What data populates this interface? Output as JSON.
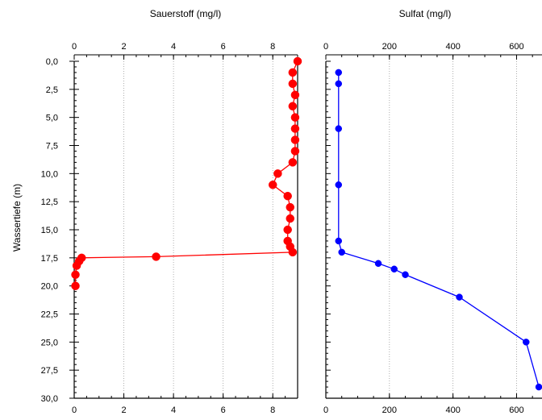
{
  "chart_data": [
    {
      "type": "line",
      "title": "Sauerstoff (mg/l)",
      "ylabel": "Wassertiefe (m)",
      "ylim": [
        0,
        30
      ],
      "y_inverted": true,
      "xlim": [
        0,
        9
      ],
      "x_ticks": [
        "0",
        "2",
        "4",
        "6",
        "8"
      ],
      "y_ticks": [
        "0,0",
        "2,5",
        "5,0",
        "7,5",
        "10,0",
        "12,5",
        "15,0",
        "17,5",
        "20,0",
        "22,5",
        "25,0",
        "27,5",
        "30,0"
      ],
      "x_grid": true,
      "color": "#ff0000",
      "series": [
        {
          "name": "",
          "points": [
            {
              "x": 9.0,
              "y": 0.0
            },
            {
              "x": 8.8,
              "y": 1.0
            },
            {
              "x": 8.8,
              "y": 2.0
            },
            {
              "x": 8.9,
              "y": 3.0
            },
            {
              "x": 8.8,
              "y": 4.0
            },
            {
              "x": 8.9,
              "y": 5.0
            },
            {
              "x": 8.9,
              "y": 6.0
            },
            {
              "x": 8.9,
              "y": 7.0
            },
            {
              "x": 8.9,
              "y": 8.0
            },
            {
              "x": 8.8,
              "y": 9.0
            },
            {
              "x": 8.2,
              "y": 10.0
            },
            {
              "x": 8.0,
              "y": 11.0
            },
            {
              "x": 8.6,
              "y": 12.0
            },
            {
              "x": 8.7,
              "y": 13.0
            },
            {
              "x": 8.7,
              "y": 14.0
            },
            {
              "x": 8.6,
              "y": 15.0
            },
            {
              "x": 8.6,
              "y": 16.0
            },
            {
              "x": 8.7,
              "y": 16.5
            },
            {
              "x": 8.8,
              "y": 17.0
            },
            {
              "x": 3.3,
              "y": 17.4
            },
            {
              "x": 0.3,
              "y": 17.5
            },
            {
              "x": 0.2,
              "y": 17.8
            },
            {
              "x": 0.1,
              "y": 18.2
            },
            {
              "x": 0.05,
              "y": 19.0
            },
            {
              "x": 0.05,
              "y": 20.0
            }
          ]
        }
      ]
    },
    {
      "type": "line",
      "title": "Sulfat (mg/l)",
      "ylim": [
        0,
        30
      ],
      "y_inverted": true,
      "xlim": [
        0,
        680
      ],
      "x_ticks": [
        "0",
        "200",
        "400",
        "600"
      ],
      "x_grid": true,
      "color": "#0000ff",
      "series": [
        {
          "name": "",
          "points": [
            {
              "x": 40,
              "y": 1.0
            },
            {
              "x": 40,
              "y": 2.0
            },
            {
              "x": 40,
              "y": 6.0
            },
            {
              "x": 40,
              "y": 11.0
            },
            {
              "x": 40,
              "y": 16.0
            },
            {
              "x": 50,
              "y": 17.0
            },
            {
              "x": 165,
              "y": 18.0
            },
            {
              "x": 215,
              "y": 18.5
            },
            {
              "x": 250,
              "y": 19.0
            },
            {
              "x": 420,
              "y": 21.0
            },
            {
              "x": 630,
              "y": 25.0
            },
            {
              "x": 670,
              "y": 29.0
            }
          ]
        }
      ]
    }
  ]
}
